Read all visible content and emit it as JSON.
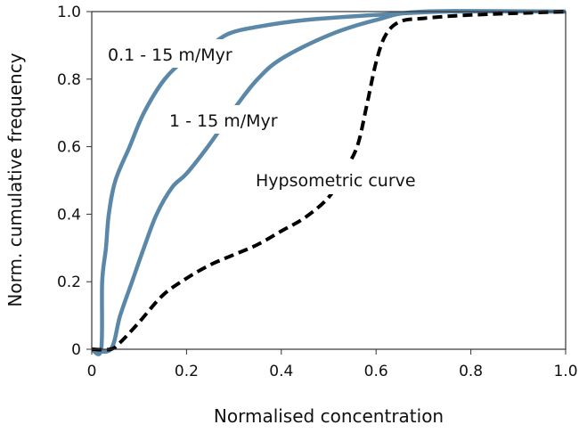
{
  "chart_data": {
    "type": "line",
    "title": "",
    "xlabel": "Normalised concentration",
    "ylabel": "Norm. cumulative frequency",
    "xlim": [
      0,
      1.0
    ],
    "ylim": [
      0,
      1.0
    ],
    "xticks": [
      "0",
      "0.2",
      "0.4",
      "0.6",
      "0.8",
      "1.0"
    ],
    "yticks": [
      "0",
      "0.2",
      "0.4",
      "0.6",
      "0.8",
      "1.0"
    ],
    "grid": false,
    "series": [
      {
        "name": "0.1 - 15 m/Myr",
        "color": "#5b88a8",
        "dashed": false,
        "x": [
          0,
          0.02,
          0.022,
          0.03,
          0.036,
          0.05,
          0.08,
          0.11,
          0.154,
          0.2,
          0.25,
          0.29,
          0.35,
          0.45,
          0.6,
          0.75,
          1.0
        ],
        "y": [
          0,
          0,
          0.2,
          0.3,
          0.4,
          0.5,
          0.6,
          0.7,
          0.8,
          0.86,
          0.9,
          0.935,
          0.955,
          0.975,
          0.99,
          1.0,
          1.0
        ]
      },
      {
        "name": "1 - 15 m/Myr",
        "color": "#5b88a8",
        "dashed": false,
        "x": [
          0,
          0.04,
          0.06,
          0.085,
          0.11,
          0.137,
          0.17,
          0.2,
          0.245,
          0.28,
          0.31,
          0.35,
          0.4,
          0.5,
          0.6,
          0.7,
          1.0
        ],
        "y": [
          0,
          0,
          0.1,
          0.2,
          0.3,
          0.4,
          0.48,
          0.52,
          0.6,
          0.67,
          0.73,
          0.8,
          0.86,
          0.93,
          0.975,
          1.0,
          1.0
        ]
      },
      {
        "name": "Hypsometric curve",
        "color": "#000000",
        "dashed": true,
        "x": [
          0,
          0.04,
          0.06,
          0.1,
          0.15,
          0.2,
          0.25,
          0.3,
          0.35,
          0.4,
          0.45,
          0.5,
          0.53,
          0.56,
          0.58,
          0.6,
          0.62,
          0.65,
          0.7,
          0.8,
          1.0
        ],
        "y": [
          0,
          0,
          0.02,
          0.08,
          0.16,
          0.21,
          0.25,
          0.28,
          0.31,
          0.35,
          0.39,
          0.45,
          0.52,
          0.6,
          0.72,
          0.85,
          0.93,
          0.97,
          0.98,
          0.99,
          1.0
        ]
      }
    ],
    "annotations": [
      "0.1 - 15 m/Myr",
      "1 - 15 m/Myr",
      "Hypsometric curve"
    ]
  }
}
